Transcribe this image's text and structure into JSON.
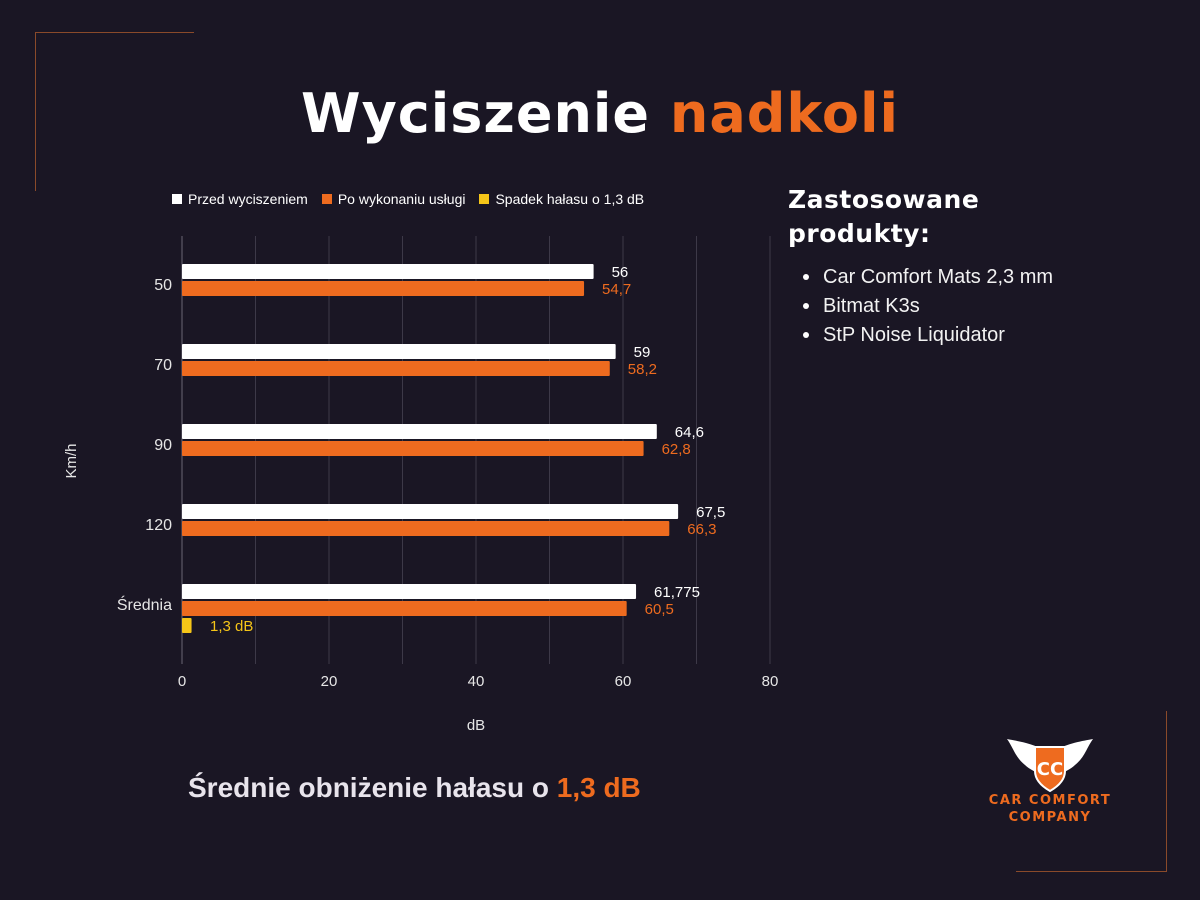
{
  "title": {
    "part1": "Wyciszenie",
    "part2": "nadkoli"
  },
  "chart_data": {
    "type": "bar",
    "orientation": "horizontal",
    "categories": [
      "50",
      "70",
      "90",
      "120",
      "Średnia"
    ],
    "series": [
      {
        "name": "Przed wyciszeniem",
        "color": "#ffffff",
        "values": [
          56,
          59,
          64.6,
          67.5,
          61.775
        ],
        "labels": [
          "56",
          "59",
          "64,6",
          "67,5",
          "61,775"
        ]
      },
      {
        "name": "Po wykonaniu usługi",
        "color": "#ee6b1f",
        "values": [
          54.7,
          58.2,
          62.8,
          66.3,
          60.5
        ],
        "labels": [
          "54,7",
          "58,2",
          "62,8",
          "66,3",
          "60,5"
        ]
      },
      {
        "name": "Spadek hałasu o 1,3 dB",
        "color": "#f5c518",
        "values": [
          null,
          null,
          null,
          null,
          1.3
        ],
        "labels": [
          "",
          "",
          "",
          "",
          "1,3 dB"
        ]
      }
    ],
    "xlabel": "dB",
    "ylabel": "Km/h",
    "xlim": [
      0,
      80
    ],
    "xticks": [
      0,
      20,
      40,
      60,
      80
    ],
    "grid": true,
    "legend_position": "top"
  },
  "products": {
    "heading_line1": "Zastosowane",
    "heading_line2": "produkty:",
    "items": [
      "Car Comfort Mats 2,3 mm",
      "Bitmat K3s",
      "StP Noise Liquidator"
    ]
  },
  "summary": {
    "text": "Średnie obniżenie hałasu o",
    "highlight": "1,3 dB"
  },
  "logo": {
    "monogram": "CC",
    "line1": "CAR COMFORT",
    "line2": "COMPANY"
  },
  "colors": {
    "background": "#1a1624",
    "accent": "#ee6b1f",
    "yellow": "#f5c518"
  }
}
